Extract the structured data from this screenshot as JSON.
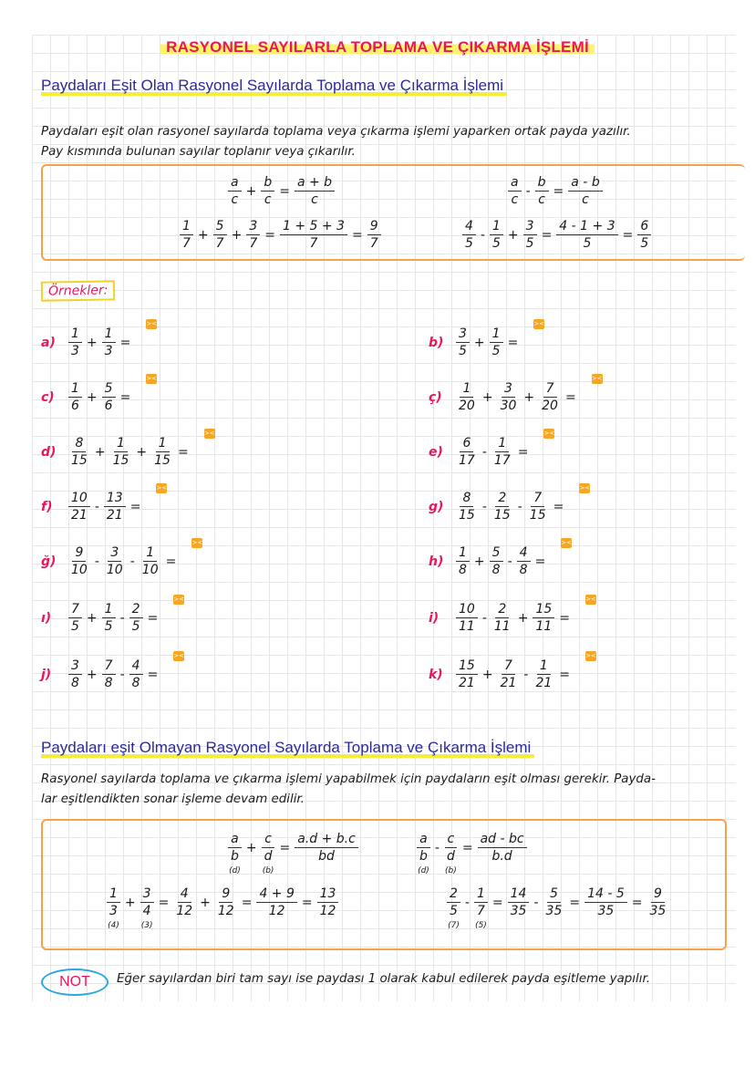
{
  "title": "RASYONEL SAYILARLA TOPLAMA VE ÇIKARMA İŞLEMİ",
  "section1": {
    "title": "Paydaları Eşit Olan Rasyonel Sayılarda Toplama ve Çıkarma İşlemi",
    "text_line1": "Paydaları eşit olan rasyonel sayılarda toplama veya çıkarma işlemi yaparken ortak payda yazılır.",
    "text_line2": "Pay kısmında bulunan sayılar toplanır veya çıkarılır.",
    "formulas": [
      [
        {
          "n": "a",
          "d": "c"
        },
        "+",
        {
          "n": "b",
          "d": "c"
        },
        "=",
        {
          "n": "a + b",
          "d": "c"
        }
      ],
      [
        {
          "n": "a",
          "d": "c"
        },
        "-",
        {
          "n": "b",
          "d": "c"
        },
        "=",
        {
          "n": "a - b",
          "d": "c"
        }
      ],
      [
        {
          "n": "1",
          "d": "7"
        },
        "+",
        {
          "n": "5",
          "d": "7"
        },
        "+",
        {
          "n": "3",
          "d": "7"
        },
        "=",
        {
          "n": "1 + 5 + 3",
          "d": "7"
        },
        "=",
        {
          "n": "9",
          "d": "7"
        }
      ],
      [
        {
          "n": "4",
          "d": "5"
        },
        "-",
        {
          "n": "1",
          "d": "5"
        },
        "+",
        {
          "n": "3",
          "d": "5"
        },
        "=",
        {
          "n": "4 - 1 + 3",
          "d": "5"
        },
        "=",
        {
          "n": "6",
          "d": "5"
        }
      ]
    ]
  },
  "examples": {
    "label": "Örnekler:",
    "answer_icon_glyph": "><",
    "items": [
      {
        "label": "a)",
        "expr": [
          {
            "n": "1",
            "d": "3"
          },
          "+",
          {
            "n": "1",
            "d": "3"
          },
          "="
        ]
      },
      {
        "label": "b)",
        "expr": [
          {
            "n": "3",
            "d": "5"
          },
          "+",
          {
            "n": "1",
            "d": "5"
          },
          "="
        ]
      },
      {
        "label": "c)",
        "expr": [
          {
            "n": "1",
            "d": "6"
          },
          "+",
          {
            "n": "5",
            "d": "6"
          },
          "="
        ]
      },
      {
        "label": "ç)",
        "expr": [
          {
            "n": "1",
            "d": "20"
          },
          "+",
          {
            "n": "3",
            "d": "30"
          },
          "+",
          {
            "n": "7",
            "d": "20"
          },
          "="
        ]
      },
      {
        "label": "d)",
        "expr": [
          {
            "n": "8",
            "d": "15"
          },
          "+",
          {
            "n": "1",
            "d": "15"
          },
          "+",
          {
            "n": "1",
            "d": "15"
          },
          "="
        ]
      },
      {
        "label": "e)",
        "expr": [
          {
            "n": "6",
            "d": "17"
          },
          "-",
          {
            "n": "1",
            "d": "17"
          },
          "="
        ]
      },
      {
        "label": "f)",
        "expr": [
          {
            "n": "10",
            "d": "21"
          },
          "-",
          {
            "n": "13",
            "d": "21"
          },
          "="
        ]
      },
      {
        "label": "g)",
        "expr": [
          {
            "n": "8",
            "d": "15"
          },
          "-",
          {
            "n": "2",
            "d": "15"
          },
          "-",
          {
            "n": "7",
            "d": "15"
          },
          "="
        ]
      },
      {
        "label": "ğ)",
        "expr": [
          {
            "n": "9",
            "d": "10"
          },
          "-",
          {
            "n": "3",
            "d": "10"
          },
          "-",
          {
            "n": "1",
            "d": "10"
          },
          "="
        ]
      },
      {
        "label": "h)",
        "expr": [
          {
            "n": "1",
            "d": "8"
          },
          "+",
          {
            "n": "5",
            "d": "8"
          },
          "-",
          {
            "n": "4",
            "d": "8"
          },
          "="
        ]
      },
      {
        "label": "ı)",
        "expr": [
          {
            "n": "7",
            "d": "5"
          },
          "+",
          {
            "n": "1",
            "d": "5"
          },
          "-",
          {
            "n": "2",
            "d": "5"
          },
          "="
        ]
      },
      {
        "label": "i)",
        "expr": [
          {
            "n": "10",
            "d": "11"
          },
          "-",
          {
            "n": "2",
            "d": "11"
          },
          "+",
          {
            "n": "15",
            "d": "11"
          },
          "="
        ]
      },
      {
        "label": "j)",
        "expr": [
          {
            "n": "3",
            "d": "8"
          },
          "+",
          {
            "n": "7",
            "d": "8"
          },
          "-",
          {
            "n": "4",
            "d": "8"
          },
          "="
        ]
      },
      {
        "label": "k)",
        "expr": [
          {
            "n": "15",
            "d": "21"
          },
          "+",
          {
            "n": "7",
            "d": "21"
          },
          "-",
          {
            "n": "1",
            "d": "21"
          },
          "="
        ]
      }
    ]
  },
  "section2": {
    "title": "Paydaları eşit Olmayan Rasyonel Sayılarda Toplama ve Çıkarma İşlemi",
    "text_line1": "Rasyonel sayılarda toplama ve çıkarma işlemi yapabilmek için paydaların eşit olması gerekir. Payda-",
    "text_line2": "lar eşitlendikten sonar işleme devam edilir.",
    "formulas": [
      [
        {
          "n": "a",
          "d": "b",
          "s": "(d)"
        },
        "+",
        {
          "n": "c",
          "d": "d",
          "s": "(b)"
        },
        "=",
        {
          "n": "a.d + b.c",
          "d": "bd"
        }
      ],
      [
        {
          "n": "a",
          "d": "b",
          "s": "(d)"
        },
        "-",
        {
          "n": "c",
          "d": "d",
          "s": "(b)"
        },
        "=",
        {
          "n": "ad - bc",
          "d": "b.d"
        }
      ],
      [
        {
          "n": "1",
          "d": "3",
          "s": "(4)"
        },
        "+",
        {
          "n": "3",
          "d": "4",
          "s": "(3)"
        },
        "=",
        {
          "n": "4",
          "d": "12"
        },
        "+",
        {
          "n": "9",
          "d": "12"
        },
        "=",
        {
          "n": "4 + 9",
          "d": "12"
        },
        "=",
        {
          "n": "13",
          "d": "12"
        }
      ],
      [
        {
          "n": "2",
          "d": "5",
          "s": "(7)"
        },
        "-",
        {
          "n": "1",
          "d": "7",
          "s": "(5)"
        },
        "=",
        {
          "n": "14",
          "d": "35"
        },
        "-",
        {
          "n": "5",
          "d": "35"
        },
        "=",
        {
          "n": "14 - 5",
          "d": "35"
        },
        "=",
        {
          "n": "9",
          "d": "35"
        }
      ]
    ]
  },
  "note": {
    "badge": "NOT",
    "text": "Eğer sayılardan biri tam sayı ise paydası 1 olarak kabul edilerek payda eşitleme yapılır."
  },
  "colors": {
    "accent_pink": "#e8175d",
    "title_blue": "#2a2a9a",
    "highlight_yellow": "#f6ec3a",
    "box_orange": "#f5a34a",
    "note_blue": "#29a8e0"
  }
}
